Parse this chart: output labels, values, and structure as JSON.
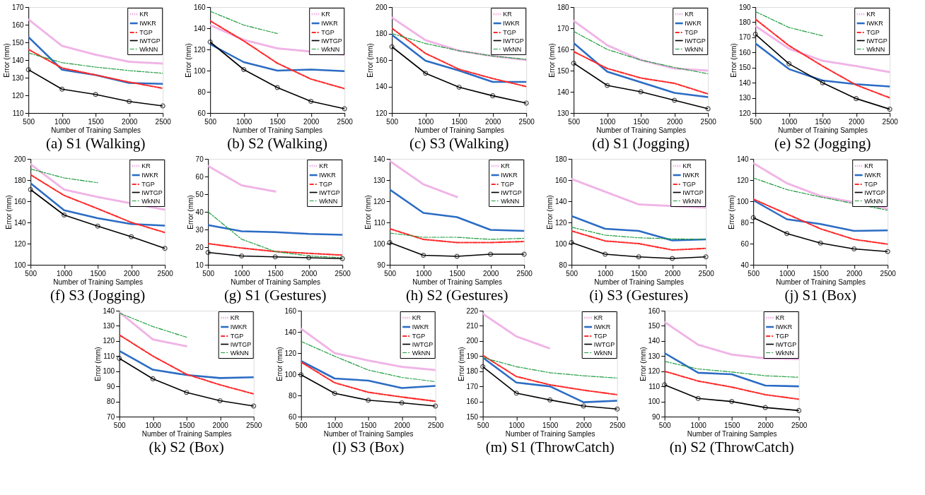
{
  "chart_data": [
    {
      "type": "line",
      "title": "(a) S1 (Walking)",
      "xlabel": "Number of Training Samples",
      "ylabel": "Error (mm)",
      "x": [
        500,
        1000,
        1500,
        2000,
        2500
      ],
      "xlim": [
        500,
        2500
      ],
      "xticks": [
        500,
        1000,
        1500,
        2000,
        2500
      ],
      "ylim": [
        110,
        170
      ],
      "yticks": [
        110,
        120,
        130,
        140,
        150,
        160,
        170
      ],
      "legend": "top right",
      "series": [
        {
          "name": "KR",
          "color": "#f0b4e6",
          "line_style": "dotted",
          "values": [
            163,
            148,
            143,
            139,
            138
          ]
        },
        {
          "name": "IWKR",
          "color": "#2b6cc4",
          "line_style": "solid",
          "values": [
            153,
            134.5,
            131.5,
            127,
            126.5
          ]
        },
        {
          "name": "TGP",
          "color": "#ff2a2a",
          "line_style": "dashed",
          "values": [
            146,
            135.5,
            131.5,
            127.5,
            124
          ]
        },
        {
          "name": "IWTGP",
          "color": "#000000",
          "line_style": "solid",
          "marker": "circle",
          "values": [
            134.5,
            123.5,
            120.5,
            116.5,
            114
          ]
        },
        {
          "name": "WkNN",
          "color": "#1a9a3a",
          "line_style": "dashed",
          "values": [
            144,
            138.5,
            136,
            134,
            132.5
          ]
        }
      ]
    },
    {
      "type": "line",
      "title": "(b) S2 (Walking)",
      "xlabel": "Number of Training Samples",
      "ylabel": "Error (mm)",
      "x": [
        500,
        1000,
        1500,
        2000,
        2500
      ],
      "xlim": [
        500,
        2500
      ],
      "xticks": [
        500,
        1000,
        1500,
        2000,
        2500
      ],
      "ylim": [
        60,
        160
      ],
      "yticks": [
        60,
        80,
        100,
        120,
        140,
        160
      ],
      "legend": "top right",
      "series": [
        {
          "name": "KR",
          "color": "#f0b4e6",
          "line_style": "dotted",
          "values": [
            143,
            129,
            121,
            null,
            115
          ]
        },
        {
          "name": "IWKR",
          "color": "#2b6cc4",
          "line_style": "solid",
          "values": [
            125,
            108,
            100,
            101,
            99.5
          ]
        },
        {
          "name": "TGP",
          "color": "#ff2a2a",
          "line_style": "dashed",
          "values": [
            147,
            128,
            107,
            92,
            83
          ]
        },
        {
          "name": "IWTGP",
          "color": "#000000",
          "line_style": "solid",
          "marker": "circle",
          "values": [
            127,
            101,
            84,
            71,
            64
          ]
        },
        {
          "name": "WkNN",
          "color": "#1a9a3a",
          "line_style": "dashed",
          "values": [
            156,
            143,
            135,
            null,
            null
          ]
        }
      ]
    },
    {
      "type": "line",
      "title": "(c) S3 (Walking)",
      "xlabel": "Number of Training Samples",
      "ylabel": "Error (mm)",
      "x": [
        500,
        1000,
        1500,
        2000,
        2500
      ],
      "xlim": [
        500,
        2500
      ],
      "xticks": [
        500,
        1000,
        1500,
        2000,
        2500
      ],
      "ylim": [
        120,
        200
      ],
      "yticks": [
        120,
        140,
        160,
        180,
        200
      ],
      "legend": "top right",
      "series": [
        {
          "name": "KR",
          "color": "#f0b4e6",
          "line_style": "dotted",
          "values": [
            192,
            175,
            167,
            163,
            160
          ]
        },
        {
          "name": "IWKR",
          "color": "#2b6cc4",
          "line_style": "solid",
          "values": [
            179,
            159.5,
            152,
            143.5,
            143.5
          ]
        },
        {
          "name": "TGP",
          "color": "#ff2a2a",
          "line_style": "dashed",
          "values": [
            184,
            165,
            153,
            146,
            140
          ]
        },
        {
          "name": "IWTGP",
          "color": "#000000",
          "line_style": "solid",
          "marker": "circle",
          "values": [
            170,
            150,
            139.5,
            133,
            127.5
          ]
        },
        {
          "name": "WkNN",
          "color": "#1a9a3a",
          "line_style": "dashed",
          "values": [
            180,
            172.5,
            167,
            163,
            160.5
          ]
        }
      ]
    },
    {
      "type": "line",
      "title": "(d) S1 (Jogging)",
      "xlabel": "Number of Training Samples",
      "ylabel": "Error (mm)",
      "x": [
        500,
        1000,
        1500,
        2000,
        2500
      ],
      "xlim": [
        500,
        2500
      ],
      "xticks": [
        500,
        1000,
        1500,
        2000,
        2500
      ],
      "ylim": [
        130,
        180
      ],
      "yticks": [
        130,
        140,
        150,
        160,
        170,
        180
      ],
      "legend": "top right",
      "series": [
        {
          "name": "KR",
          "color": "#f0b4e6",
          "line_style": "dotted",
          "values": [
            173.5,
            162,
            155,
            151,
            150
          ]
        },
        {
          "name": "IWKR",
          "color": "#2b6cc4",
          "line_style": "solid",
          "values": [
            163,
            149.5,
            144.5,
            139.5,
            137.5
          ]
        },
        {
          "name": "TGP",
          "color": "#ff2a2a",
          "line_style": "dashed",
          "values": [
            159,
            151,
            146.5,
            144,
            139
          ]
        },
        {
          "name": "IWTGP",
          "color": "#000000",
          "line_style": "solid",
          "marker": "circle",
          "values": [
            153.5,
            143,
            140,
            136,
            132
          ]
        },
        {
          "name": "WkNN",
          "color": "#1a9a3a",
          "line_style": "dashed",
          "values": [
            168.5,
            160,
            155,
            151.5,
            148.5
          ]
        }
      ]
    },
    {
      "type": "line",
      "title": "(e) S2 (Jogging)",
      "xlabel": "Number of Training Samples",
      "ylabel": "Error (mm)",
      "x": [
        500,
        1000,
        1500,
        2000,
        2500
      ],
      "xlim": [
        500,
        2500
      ],
      "xticks": [
        500,
        1000,
        1500,
        2000,
        2500
      ],
      "ylim": [
        120,
        190
      ],
      "yticks": [
        120,
        130,
        140,
        150,
        160,
        170,
        180,
        190
      ],
      "legend": "top right",
      "series": [
        {
          "name": "KR",
          "color": "#f0b4e6",
          "line_style": "dotted",
          "values": [
            177.5,
            162.5,
            154.5,
            151,
            147
          ]
        },
        {
          "name": "IWKR",
          "color": "#2b6cc4",
          "line_style": "solid",
          "values": [
            166,
            149,
            141.5,
            139,
            137.5
          ]
        },
        {
          "name": "TGP",
          "color": "#ff2a2a",
          "line_style": "dashed",
          "values": [
            182,
            164.5,
            151,
            138.5,
            130
          ]
        },
        {
          "name": "IWTGP",
          "color": "#000000",
          "line_style": "solid",
          "marker": "circle",
          "values": [
            172,
            152.5,
            140,
            129.5,
            122.5
          ]
        },
        {
          "name": "WkNN",
          "color": "#1a9a3a",
          "line_style": "dashed",
          "values": [
            187,
            176.5,
            171,
            null,
            null
          ]
        }
      ]
    },
    {
      "type": "line",
      "title": "(f) S3 (Jogging)",
      "xlabel": "Number of Training Samples",
      "ylabel": "Error (mm)",
      "x": [
        500,
        1000,
        1500,
        2000,
        2500
      ],
      "xlim": [
        500,
        2500
      ],
      "xticks": [
        500,
        1000,
        1500,
        2000,
        2500
      ],
      "ylim": [
        100,
        200
      ],
      "yticks": [
        100,
        120,
        140,
        160,
        180,
        200
      ],
      "legend": "top right",
      "series": [
        {
          "name": "KR",
          "color": "#f0b4e6",
          "line_style": "dotted",
          "values": [
            195,
            171,
            164,
            null,
            152
          ]
        },
        {
          "name": "IWKR",
          "color": "#2b6cc4",
          "line_style": "solid",
          "values": [
            177,
            151.5,
            144,
            138.5,
            137
          ]
        },
        {
          "name": "TGP",
          "color": "#ff2a2a",
          "line_style": "dashed",
          "values": [
            185,
            165.5,
            153,
            140,
            130.5
          ]
        },
        {
          "name": "IWTGP",
          "color": "#000000",
          "line_style": "solid",
          "marker": "circle",
          "values": [
            171,
            147,
            136.5,
            126.5,
            115.5
          ]
        },
        {
          "name": "WkNN",
          "color": "#1a9a3a",
          "line_style": "dashed",
          "values": [
            190.5,
            182,
            177.5,
            null,
            null
          ]
        }
      ]
    },
    {
      "type": "line",
      "title": "(g) S1 (Gestures)",
      "xlabel": "Number of Training Samples",
      "ylabel": "Error (mm)",
      "x": [
        500,
        1000,
        1500,
        2000,
        2500
      ],
      "xlim": [
        500,
        2500
      ],
      "xticks": [
        500,
        1000,
        1500,
        2000,
        2500
      ],
      "ylim": [
        10,
        70
      ],
      "yticks": [
        10,
        20,
        30,
        40,
        50,
        60,
        70
      ],
      "legend": "top right",
      "series": [
        {
          "name": "KR",
          "color": "#f0b4e6",
          "line_style": "dotted",
          "values": [
            66,
            55,
            51.5,
            null,
            null
          ]
        },
        {
          "name": "IWKR",
          "color": "#2b6cc4",
          "line_style": "solid",
          "values": [
            32.5,
            29,
            28.5,
            27.5,
            27
          ]
        },
        {
          "name": "TGP",
          "color": "#ff2a2a",
          "line_style": "dashed",
          "values": [
            22,
            19.5,
            17.5,
            16.5,
            15.5
          ]
        },
        {
          "name": "IWTGP",
          "color": "#000000",
          "line_style": "solid",
          "marker": "circle",
          "values": [
            17,
            15,
            14.5,
            14,
            13.5
          ]
        },
        {
          "name": "WkNN",
          "color": "#1a9a3a",
          "line_style": "dashed",
          "values": [
            40,
            24.5,
            17.5,
            15,
            14
          ]
        }
      ]
    },
    {
      "type": "line",
      "title": "(h) S2 (Gestures)",
      "xlabel": "Number of Training Samples",
      "ylabel": "Error (mm)",
      "x": [
        500,
        1000,
        1500,
        2000,
        2500
      ],
      "xlim": [
        500,
        2500
      ],
      "xticks": [
        500,
        1000,
        1500,
        2000,
        2500
      ],
      "ylim": [
        90,
        140
      ],
      "yticks": [
        90,
        100,
        110,
        120,
        130,
        140
      ],
      "legend": "top right",
      "series": [
        {
          "name": "KR",
          "color": "#f0b4e6",
          "line_style": "dotted",
          "values": [
            139,
            128,
            122,
            null,
            null
          ]
        },
        {
          "name": "IWKR",
          "color": "#2b6cc4",
          "line_style": "solid",
          "values": [
            125.5,
            114.5,
            112.5,
            106.5,
            106
          ]
        },
        {
          "name": "TGP",
          "color": "#ff2a2a",
          "line_style": "dashed",
          "values": [
            107,
            102,
            100.5,
            100.5,
            101
          ]
        },
        {
          "name": "IWTGP",
          "color": "#000000",
          "line_style": "solid",
          "marker": "circle",
          "values": [
            100.5,
            94.5,
            94,
            95,
            95
          ]
        },
        {
          "name": "WkNN",
          "color": "#1a9a3a",
          "line_style": "dashed",
          "values": [
            105,
            103,
            103,
            102,
            102.5
          ]
        }
      ]
    },
    {
      "type": "line",
      "title": "(i) S3 (Gestures)",
      "xlabel": "Number of Training Samples",
      "ylabel": "Error (mm)",
      "x": [
        500,
        1000,
        1500,
        2000,
        2500
      ],
      "xlim": [
        500,
        2500
      ],
      "xticks": [
        500,
        1000,
        1500,
        2000,
        2500
      ],
      "ylim": [
        80,
        180
      ],
      "yticks": [
        80,
        100,
        120,
        140,
        160,
        180
      ],
      "legend": "top right",
      "series": [
        {
          "name": "KR",
          "color": "#f0b4e6",
          "line_style": "dotted",
          "values": [
            161,
            149,
            137,
            null,
            134
          ]
        },
        {
          "name": "IWKR",
          "color": "#2b6cc4",
          "line_style": "solid",
          "values": [
            126,
            114,
            112,
            103,
            104
          ]
        },
        {
          "name": "TGP",
          "color": "#ff2a2a",
          "line_style": "dashed",
          "values": [
            112,
            102.5,
            100,
            94,
            95.5
          ]
        },
        {
          "name": "IWTGP",
          "color": "#000000",
          "line_style": "solid",
          "marker": "circle",
          "values": [
            101,
            90,
            87.5,
            86,
            87.5
          ]
        },
        {
          "name": "WkNN",
          "color": "#1a9a3a",
          "line_style": "dashed",
          "values": [
            115.5,
            108,
            105.5,
            104.5,
            104
          ]
        }
      ]
    },
    {
      "type": "line",
      "title": "(j) S1 (Box)",
      "xlabel": "Number of Training Samples",
      "ylabel": "Error (mm)",
      "x": [
        500,
        1000,
        1500,
        2000,
        2500
      ],
      "xlim": [
        500,
        2500
      ],
      "xticks": [
        500,
        1000,
        1500,
        2000,
        2500
      ],
      "ylim": [
        40,
        140
      ],
      "yticks": [
        40,
        60,
        80,
        100,
        120,
        140
      ],
      "legend": "top right",
      "series": [
        {
          "name": "KR",
          "color": "#f0b4e6",
          "line_style": "dotted",
          "values": [
            136,
            117,
            105,
            null,
            93
          ]
        },
        {
          "name": "IWKR",
          "color": "#2b6cc4",
          "line_style": "solid",
          "values": [
            101,
            83,
            78.5,
            72,
            72.5
          ]
        },
        {
          "name": "TGP",
          "color": "#ff2a2a",
          "line_style": "dashed",
          "values": [
            102,
            88,
            74,
            64,
            59.5
          ]
        },
        {
          "name": "IWTGP",
          "color": "#000000",
          "line_style": "solid",
          "marker": "circle",
          "values": [
            84.5,
            69.5,
            60.5,
            55,
            52.5
          ]
        },
        {
          "name": "WkNN",
          "color": "#1a9a3a",
          "line_style": "dashed",
          "values": [
            122,
            111,
            104,
            null,
            91.5
          ]
        }
      ]
    },
    {
      "type": "line",
      "title": "(k) S2 (Box)",
      "xlabel": "Number of Training Samples",
      "ylabel": "Error (mm)",
      "x": [
        500,
        1000,
        1500,
        2000,
        2500
      ],
      "xlim": [
        500,
        2500
      ],
      "xticks": [
        500,
        1000,
        1500,
        2000,
        2500
      ],
      "ylim": [
        70,
        140
      ],
      "yticks": [
        70,
        80,
        90,
        100,
        110,
        120,
        130,
        140
      ],
      "legend": "top right",
      "series": [
        {
          "name": "KR",
          "color": "#f0b4e6",
          "line_style": "dotted",
          "values": [
            139,
            121,
            116.5,
            null,
            null
          ]
        },
        {
          "name": "IWKR",
          "color": "#2b6cc4",
          "line_style": "solid",
          "values": [
            113.5,
            101,
            97.5,
            95.5,
            96
          ]
        },
        {
          "name": "TGP",
          "color": "#ff2a2a",
          "line_style": "dashed",
          "values": [
            124,
            110,
            98,
            91,
            85
          ]
        },
        {
          "name": "IWTGP",
          "color": "#000000",
          "line_style": "solid",
          "marker": "circle",
          "values": [
            108.5,
            95,
            86,
            80.5,
            77
          ]
        },
        {
          "name": "WkNN",
          "color": "#1a9a3a",
          "line_style": "dashed",
          "values": [
            138.5,
            129.5,
            122.5,
            null,
            null
          ]
        }
      ]
    },
    {
      "type": "line",
      "title": "(l) S3 (Box)",
      "xlabel": "Number of Training Samples",
      "ylabel": "Error (mm)",
      "x": [
        500,
        1000,
        1500,
        2000,
        2500
      ],
      "xlim": [
        500,
        2500
      ],
      "xticks": [
        500,
        1000,
        1500,
        2000,
        2500
      ],
      "ylim": [
        60,
        160
      ],
      "yticks": [
        60,
        80,
        100,
        120,
        140,
        160
      ],
      "legend": "top right",
      "series": [
        {
          "name": "KR",
          "color": "#f0b4e6",
          "line_style": "dotted",
          "values": [
            143,
            120,
            113,
            107,
            104
          ]
        },
        {
          "name": "IWKR",
          "color": "#2b6cc4",
          "line_style": "solid",
          "values": [
            112.5,
            96,
            94,
            87,
            89
          ]
        },
        {
          "name": "TGP",
          "color": "#ff2a2a",
          "line_style": "dashed",
          "values": [
            111.5,
            92,
            83,
            78.5,
            74.5
          ]
        },
        {
          "name": "IWTGP",
          "color": "#000000",
          "line_style": "solid",
          "marker": "circle",
          "values": [
            99.5,
            82,
            75.5,
            73,
            70
          ]
        },
        {
          "name": "WkNN",
          "color": "#1a9a3a",
          "line_style": "dashed",
          "values": [
            131,
            117,
            104,
            97,
            93
          ]
        }
      ]
    },
    {
      "type": "line",
      "title": "(m) S1 (ThrowCatch)",
      "xlabel": "Number of Training Samples",
      "ylabel": "Error (mm)",
      "x": [
        500,
        1000,
        1500,
        2000,
        2500
      ],
      "xlim": [
        500,
        2500
      ],
      "xticks": [
        500,
        1000,
        1500,
        2000,
        2500
      ],
      "ylim": [
        150,
        220
      ],
      "yticks": [
        150,
        160,
        170,
        180,
        190,
        200,
        210,
        220
      ],
      "legend": "top right",
      "series": [
        {
          "name": "KR",
          "color": "#f0b4e6",
          "line_style": "dotted",
          "values": [
            218,
            203,
            195,
            null,
            null
          ]
        },
        {
          "name": "IWKR",
          "color": "#2b6cc4",
          "line_style": "solid",
          "values": [
            189,
            172.5,
            170,
            159.5,
            160.5
          ]
        },
        {
          "name": "TGP",
          "color": "#ff2a2a",
          "line_style": "dashed",
          "values": [
            190.5,
            176.5,
            171,
            167.5,
            164.5
          ]
        },
        {
          "name": "IWTGP",
          "color": "#000000",
          "line_style": "solid",
          "marker": "circle",
          "values": [
            183,
            165.5,
            161,
            157,
            155
          ]
        },
        {
          "name": "WkNN",
          "color": "#1a9a3a",
          "line_style": "dashed",
          "values": [
            189,
            183,
            179,
            177,
            175.5
          ]
        }
      ]
    },
    {
      "type": "line",
      "title": "(n) S2 (ThrowCatch)",
      "xlabel": "Number of Training Samples",
      "ylabel": "Error (mm)",
      "x": [
        500,
        1000,
        1500,
        2000,
        2500
      ],
      "xlim": [
        500,
        2500
      ],
      "xticks": [
        500,
        1000,
        1500,
        2000,
        2500
      ],
      "ylim": [
        90,
        160
      ],
      "yticks": [
        90,
        100,
        110,
        120,
        130,
        140,
        150,
        160
      ],
      "legend": "top right",
      "series": [
        {
          "name": "KR",
          "color": "#f0b4e6",
          "line_style": "dotted",
          "values": [
            152.5,
            137.5,
            131,
            128.5,
            128
          ]
        },
        {
          "name": "IWKR",
          "color": "#2b6cc4",
          "line_style": "solid",
          "values": [
            132,
            119,
            118,
            110.5,
            110
          ]
        },
        {
          "name": "TGP",
          "color": "#ff2a2a",
          "line_style": "dashed",
          "values": [
            120,
            113.5,
            109.5,
            104.5,
            101.5
          ]
        },
        {
          "name": "IWTGP",
          "color": "#000000",
          "line_style": "solid",
          "marker": "circle",
          "values": [
            111,
            102,
            100,
            96,
            94
          ]
        },
        {
          "name": "WkNN",
          "color": "#1a9a3a",
          "line_style": "dashed",
          "values": [
            126.5,
            121.5,
            119.5,
            117,
            116
          ]
        }
      ]
    }
  ]
}
